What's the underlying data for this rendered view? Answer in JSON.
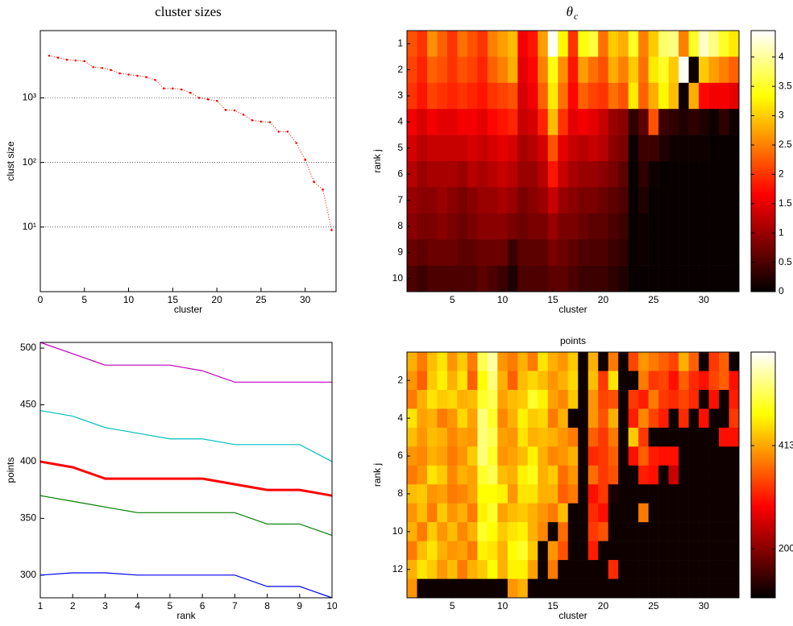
{
  "chart_data": [
    {
      "type": "line",
      "title": "cluster sizes",
      "x_label": "cluster",
      "y_label": "clust size",
      "ylog": true,
      "grid": "y",
      "x": [
        1,
        2,
        3,
        4,
        5,
        6,
        7,
        8,
        9,
        10,
        11,
        12,
        13,
        14,
        15,
        16,
        17,
        18,
        19,
        20,
        21,
        22,
        23,
        24,
        25,
        26,
        27,
        28,
        29,
        30,
        31,
        32,
        33
      ],
      "series": [
        {
          "color": "#ff0000",
          "linestyle": "dotted",
          "marker": true,
          "values": [
            4500,
            4200,
            3900,
            3800,
            3700,
            3000,
            2900,
            2700,
            2400,
            2300,
            2200,
            2100,
            1900,
            1400,
            1400,
            1350,
            1200,
            1000,
            950,
            900,
            650,
            640,
            550,
            450,
            430,
            420,
            300,
            300,
            200,
            110,
            50,
            38,
            9
          ]
        }
      ],
      "xlim": [
        0,
        33.5
      ],
      "xticks": [
        0,
        5,
        10,
        15,
        20,
        25,
        30
      ],
      "ylim": [
        1,
        11000
      ],
      "yticks": [
        {
          "value": 10,
          "label": "10¹"
        },
        {
          "value": 100,
          "label": "10²"
        },
        {
          "value": 1000,
          "label": "10³"
        }
      ]
    },
    {
      "type": "heatmap",
      "title": "θ",
      "title_subscript": "c",
      "x_label": "cluster",
      "y_label": "rank j",
      "colormap": "hot",
      "xlim": [
        0.5,
        33.5
      ],
      "xticks": [
        5,
        10,
        15,
        20,
        25,
        30
      ],
      "ylim": [
        0.5,
        10.5
      ],
      "yticks": [
        1,
        2,
        3,
        4,
        5,
        6,
        7,
        8,
        9,
        10
      ],
      "clim": [
        0,
        4.45
      ],
      "cticks": [
        0,
        0.5,
        1,
        1.5,
        2,
        2.5,
        3,
        3.5,
        4
      ],
      "z": [
        [
          2.2,
          2.0,
          2.6,
          2.3,
          2.0,
          2.4,
          2.2,
          2.0,
          2.5,
          2.7,
          2.9,
          1.6,
          1.8,
          2.7,
          4.4,
          3.3,
          2.0,
          3.4,
          3.6,
          2.4,
          3.0,
          2.8,
          3.5,
          2.5,
          3.0,
          3.8,
          3.9,
          2.5,
          3.5,
          4.2,
          3.9,
          3.5,
          3.2
        ],
        [
          2.1,
          1.9,
          2.3,
          2.2,
          2.0,
          2.2,
          2.1,
          1.9,
          2.3,
          2.5,
          2.8,
          1.5,
          1.7,
          2.5,
          3.4,
          2.6,
          1.8,
          2.7,
          2.4,
          2.2,
          2.8,
          2.5,
          3.0,
          2.4,
          3.2,
          3.5,
          3.0,
          4.4,
          0.1,
          3.0,
          2.7,
          2.5,
          2.3
        ],
        [
          2.0,
          1.8,
          2.1,
          2.0,
          1.9,
          2.0,
          1.9,
          1.8,
          2.0,
          2.1,
          2.2,
          1.4,
          1.6,
          2.3,
          3.2,
          2.4,
          1.7,
          2.3,
          2.1,
          2.0,
          2.4,
          2.2,
          3.2,
          2.3,
          2.8,
          3.3,
          2.9,
          0.1,
          2.8,
          1.7,
          1.6,
          1.6,
          1.5
        ],
        [
          1.6,
          1.4,
          1.6,
          1.5,
          1.5,
          1.6,
          1.6,
          1.5,
          1.7,
          1.8,
          1.9,
          1.3,
          1.4,
          1.9,
          2.9,
          2.0,
          1.5,
          1.6,
          1.5,
          1.3,
          1.0,
          0.9,
          0.3,
          0.6,
          2.2,
          0.4,
          0.3,
          0.2,
          0.3,
          0.2,
          0.1,
          0.3,
          0.1
        ],
        [
          1.4,
          1.2,
          1.3,
          1.3,
          1.3,
          1.3,
          1.4,
          1.3,
          1.4,
          1.5,
          1.4,
          1.1,
          1.2,
          1.4,
          2.2,
          1.5,
          1.3,
          1.2,
          1.3,
          1.2,
          0.9,
          0.8,
          0.1,
          0.4,
          0.4,
          0.2,
          0.1,
          0.1,
          0.1,
          0.1,
          0.05,
          0.05,
          0.05
        ],
        [
          1.2,
          1.0,
          1.1,
          1.1,
          1.1,
          1.0,
          1.2,
          1.1,
          1.2,
          1.3,
          1.2,
          1.0,
          1.0,
          1.2,
          1.8,
          1.3,
          1.1,
          1.0,
          1.0,
          0.9,
          0.8,
          0.6,
          0.05,
          0.3,
          0.1,
          0.05,
          0.05,
          0.05,
          0.05,
          0.05,
          0.05,
          0.05,
          0.05
        ],
        [
          1.0,
          0.9,
          0.9,
          1.0,
          0.9,
          0.8,
          0.9,
          1.0,
          1.0,
          1.1,
          1.0,
          0.8,
          0.9,
          1.0,
          1.3,
          1.0,
          0.9,
          0.8,
          0.8,
          0.7,
          0.6,
          0.5,
          0.05,
          0.2,
          0.05,
          0.05,
          0.05,
          0.05,
          0.05,
          0.05,
          0.05,
          0.05,
          0.05
        ],
        [
          0.9,
          0.8,
          0.8,
          0.9,
          0.8,
          0.7,
          0.8,
          0.9,
          0.9,
          0.9,
          0.8,
          0.7,
          0.8,
          0.8,
          1.0,
          0.8,
          0.8,
          0.7,
          0.6,
          0.6,
          0.5,
          0.4,
          0.05,
          0.1,
          0.05,
          0.05,
          0.05,
          0.05,
          0.05,
          0.05,
          0.05,
          0.05,
          0.05
        ],
        [
          0.7,
          0.6,
          0.7,
          0.7,
          0.7,
          0.6,
          0.6,
          0.7,
          0.7,
          0.7,
          0.4,
          0.6,
          0.6,
          0.6,
          0.8,
          0.7,
          0.6,
          0.5,
          0.5,
          0.5,
          0.4,
          0.3,
          0.05,
          0.1,
          0.05,
          0.05,
          0.05,
          0.05,
          0.05,
          0.05,
          0.05,
          0.05,
          0.05
        ],
        [
          0.5,
          0.4,
          0.5,
          0.5,
          0.5,
          0.5,
          0.5,
          0.6,
          0.5,
          0.4,
          0.2,
          0.5,
          0.5,
          0.5,
          0.6,
          0.6,
          0.5,
          0.4,
          0.4,
          0.4,
          0.3,
          0.2,
          0.05,
          0.05,
          0.05,
          0.05,
          0.05,
          0.05,
          0.05,
          0.05,
          0.05,
          0.05,
          0.05
        ]
      ]
    },
    {
      "type": "line",
      "x_label": "rank",
      "y_label": "points",
      "grid": "none",
      "x": [
        1,
        2,
        3,
        4,
        5,
        6,
        7,
        8,
        9,
        10
      ],
      "series": [
        {
          "color": "#bf00bf",
          "width": 1.2,
          "values": [
            505,
            495,
            485,
            485,
            485,
            480,
            470,
            470,
            470,
            470
          ]
        },
        {
          "color": "#00bfbf",
          "width": 1.2,
          "values": [
            445,
            440,
            430,
            425,
            420,
            420,
            415,
            415,
            415,
            400
          ]
        },
        {
          "color": "#ff0000",
          "width": 3,
          "values": [
            400,
            395,
            385,
            385,
            385,
            385,
            380,
            375,
            375,
            370
          ]
        },
        {
          "color": "#008000",
          "width": 1.2,
          "values": [
            370,
            365,
            360,
            355,
            355,
            355,
            355,
            345,
            345,
            335
          ]
        },
        {
          "color": "#0000ff",
          "width": 1.2,
          "values": [
            300,
            302,
            302,
            300,
            300,
            300,
            300,
            290,
            290,
            280
          ]
        }
      ],
      "xlim": [
        1,
        10
      ],
      "xticks": [
        1,
        2,
        3,
        4,
        5,
        6,
        7,
        8,
        9,
        10
      ],
      "ylim": [
        280,
        505
      ],
      "yticks": [
        300,
        350,
        400,
        450,
        500
      ]
    },
    {
      "type": "heatmap",
      "title": "points",
      "x_label": "cluster",
      "y_label": "rank j",
      "colormap": "hot",
      "xlim": [
        0.5,
        33.5
      ],
      "xticks": [
        5,
        10,
        15,
        20,
        25,
        30
      ],
      "ylim": [
        0.5,
        13.5
      ],
      "yticks": [
        2,
        4,
        6,
        8,
        10,
        12
      ],
      "clim": [
        99,
        606
      ],
      "cticks": [
        200,
        413
      ],
      "z": [
        [
          420,
          380,
          430,
          460,
          400,
          440,
          380,
          520,
          560,
          400,
          380,
          420,
          380,
          460,
          420,
          400,
          440,
          110,
          420,
          110,
          380,
          110,
          340,
          400,
          380,
          360,
          340,
          420,
          360,
          110,
          330,
          360,
          110
        ],
        [
          400,
          360,
          440,
          470,
          420,
          460,
          360,
          480,
          540,
          420,
          360,
          430,
          450,
          430,
          400,
          420,
          450,
          110,
          430,
          330,
          460,
          110,
          110,
          380,
          330,
          340,
          300,
          360,
          320,
          300,
          340,
          360,
          300
        ],
        [
          380,
          420,
          460,
          440,
          450,
          420,
          430,
          500,
          520,
          410,
          430,
          440,
          500,
          470,
          410,
          390,
          440,
          110,
          400,
          340,
          350,
          110,
          330,
          310,
          380,
          330,
          320,
          340,
          320,
          110,
          300,
          110,
          310
        ],
        [
          460,
          410,
          420,
          380,
          400,
          450,
          410,
          540,
          500,
          390,
          420,
          470,
          440,
          450,
          380,
          420,
          110,
          110,
          400,
          350,
          420,
          110,
          310,
          390,
          340,
          310,
          110,
          320,
          110,
          300,
          110,
          110,
          330
        ],
        [
          430,
          400,
          430,
          420,
          390,
          410,
          400,
          540,
          520,
          410,
          400,
          460,
          420,
          430,
          420,
          400,
          380,
          110,
          360,
          330,
          380,
          110,
          440,
          330,
          110,
          110,
          110,
          110,
          110,
          110,
          110,
          300,
          300
        ],
        [
          400,
          390,
          420,
          410,
          380,
          400,
          440,
          540,
          500,
          400,
          410,
          430,
          470,
          420,
          390,
          400,
          420,
          110,
          320,
          330,
          360,
          110,
          300,
          360,
          310,
          300,
          300,
          110,
          110,
          110,
          110,
          110,
          110
        ],
        [
          380,
          400,
          460,
          440,
          390,
          420,
          410,
          500,
          520,
          430,
          420,
          470,
          490,
          420,
          440,
          370,
          400,
          110,
          370,
          330,
          350,
          110,
          110,
          310,
          300,
          110,
          250,
          110,
          110,
          110,
          110,
          110,
          110
        ],
        [
          430,
          440,
          400,
          410,
          380,
          390,
          410,
          480,
          480,
          470,
          400,
          460,
          460,
          420,
          420,
          360,
          380,
          110,
          300,
          330,
          120,
          110,
          110,
          110,
          110,
          110,
          110,
          110,
          110,
          110,
          110,
          110,
          110
        ],
        [
          400,
          430,
          380,
          440,
          400,
          420,
          380,
          470,
          500,
          410,
          430,
          440,
          420,
          400,
          380,
          430,
          110,
          110,
          320,
          300,
          110,
          110,
          110,
          380,
          110,
          110,
          110,
          110,
          110,
          110,
          110,
          110,
          110
        ],
        [
          420,
          380,
          440,
          400,
          430,
          390,
          420,
          500,
          480,
          440,
          460,
          470,
          420,
          390,
          110,
          370,
          110,
          110,
          330,
          350,
          110,
          110,
          110,
          110,
          110,
          110,
          110,
          110,
          110,
          110,
          110,
          110,
          110
        ],
        [
          380,
          430,
          460,
          420,
          400,
          410,
          380,
          470,
          460,
          420,
          480,
          500,
          440,
          110,
          400,
          350,
          110,
          110,
          310,
          110,
          110,
          110,
          110,
          110,
          110,
          110,
          110,
          110,
          110,
          110,
          110,
          110,
          110
        ],
        [
          420,
          460,
          440,
          400,
          430,
          380,
          420,
          440,
          480,
          420,
          470,
          470,
          410,
          110,
          380,
          110,
          110,
          110,
          110,
          110,
          320,
          110,
          110,
          110,
          110,
          110,
          110,
          110,
          110,
          110,
          110,
          110,
          110
        ],
        [
          400,
          110,
          110,
          110,
          110,
          110,
          110,
          110,
          110,
          110,
          400,
          420,
          110,
          110,
          110,
          110,
          110,
          110,
          110,
          110,
          110,
          110,
          110,
          110,
          110,
          110,
          110,
          110,
          110,
          110,
          110,
          110,
          110
        ]
      ]
    }
  ]
}
